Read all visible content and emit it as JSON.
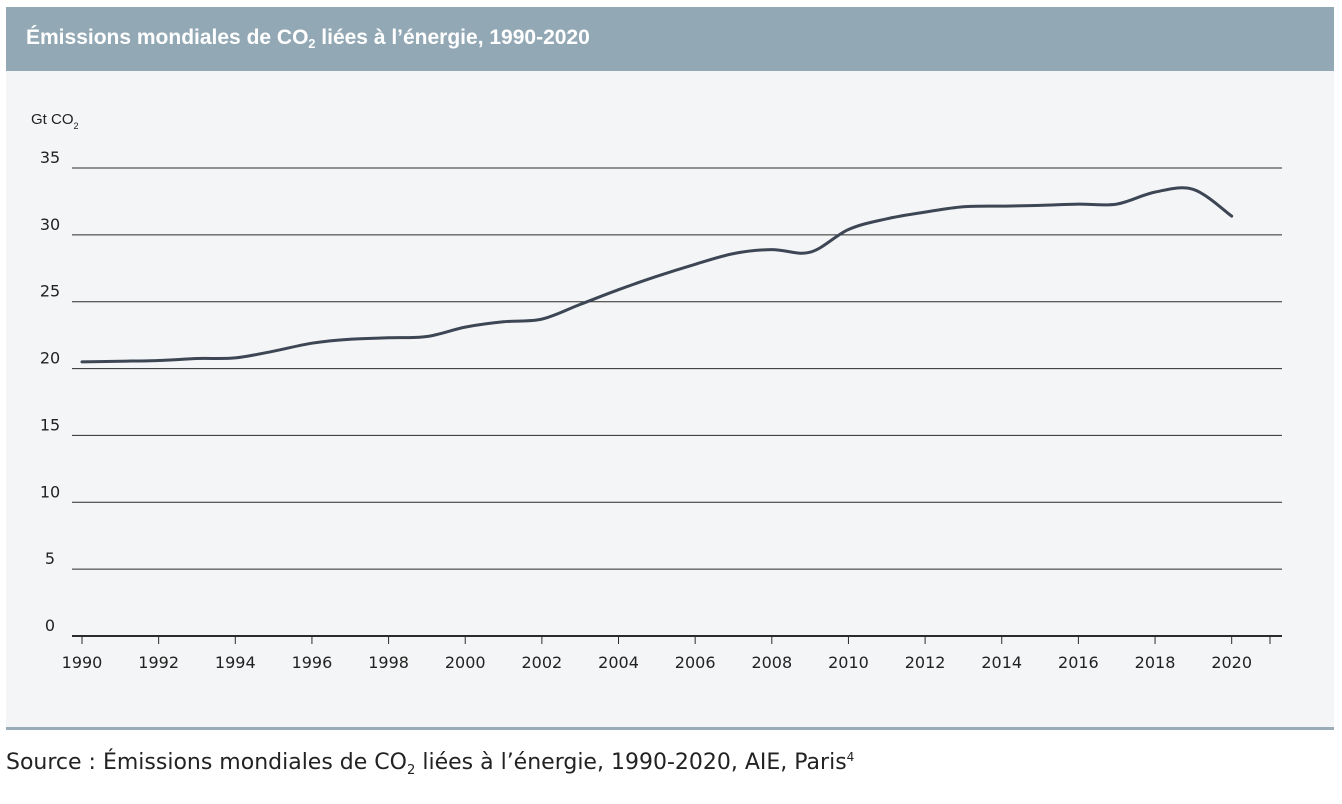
{
  "figure": {
    "title_main": "Émissions mondiales de CO",
    "title_sub": "2",
    "title_rest": " liées à l’énergie, 1990-2020"
  },
  "source": {
    "prefix": "Source : Émissions mondiales de CO",
    "sub": "2",
    "rest": " liées à l’énergie, 1990-2020, AIE, Paris",
    "footnote": "4"
  },
  "chart_data": {
    "type": "line",
    "title": "Émissions mondiales de CO2 liées à l’énergie, 1990-2020",
    "ylabel_main": "Gt CO",
    "ylabel_sub": "2",
    "xlabel": "",
    "ylim": [
      0,
      35
    ],
    "yticks": [
      0,
      5,
      10,
      15,
      20,
      25,
      30,
      35
    ],
    "xlim": [
      1990,
      2021
    ],
    "xtick_labels": [
      "1990",
      "1992",
      "1994",
      "1996",
      "1998",
      "2000",
      "2002",
      "2004",
      "2006",
      "2008",
      "2010",
      "2012",
      "2014",
      "2016",
      "2018",
      "2020"
    ],
    "grid": true,
    "series": [
      {
        "color": "#3d4654",
        "x": [
          1990,
          1991,
          1992,
          1993,
          1994,
          1995,
          1996,
          1997,
          1998,
          1999,
          2000,
          2001,
          2002,
          2003,
          2004,
          2005,
          2006,
          2007,
          2008,
          2009,
          2010,
          2011,
          2012,
          2013,
          2014,
          2015,
          2016,
          2017,
          2018,
          2019,
          2020
        ],
        "y": [
          20.5,
          20.55,
          20.6,
          20.75,
          20.8,
          21.3,
          21.9,
          22.2,
          22.3,
          22.4,
          23.1,
          23.5,
          23.7,
          24.8,
          25.9,
          26.9,
          27.8,
          28.6,
          28.9,
          28.7,
          30.4,
          31.2,
          31.7,
          32.1,
          32.15,
          32.2,
          32.3,
          32.3,
          33.2,
          33.4,
          31.4
        ]
      }
    ]
  }
}
